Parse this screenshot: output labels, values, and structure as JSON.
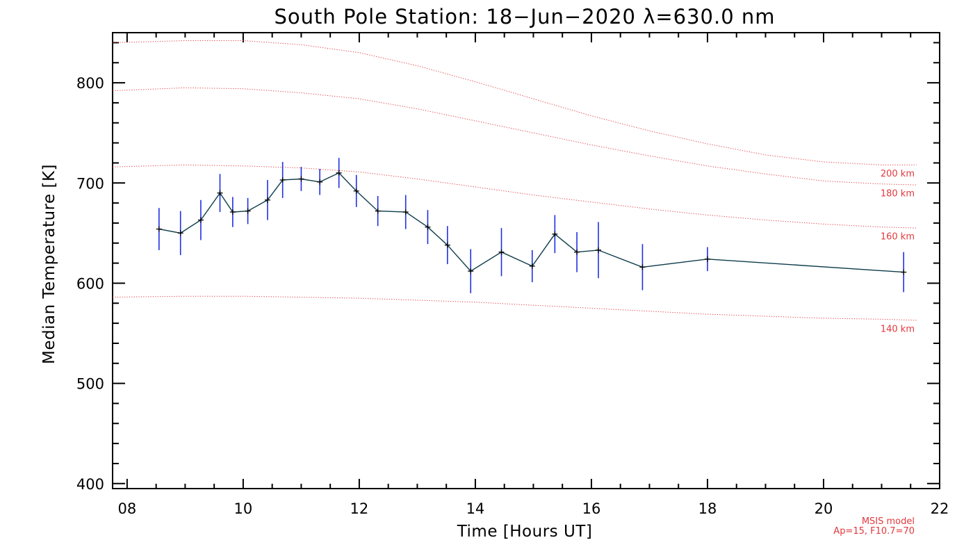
{
  "chart_data": {
    "type": "line",
    "title": "South Pole Station: 18−Jun−2020 λ=630.0 nm",
    "xlabel": "Time [Hours UT]",
    "ylabel": "Median Temperature [K]",
    "xlim": [
      7.75,
      22.0
    ],
    "ylim": [
      395,
      850
    ],
    "x_ticks": [
      8,
      10,
      12,
      14,
      16,
      18,
      20,
      22
    ],
    "x_tick_labels": [
      "08",
      "10",
      "12",
      "14",
      "16",
      "18",
      "20",
      "22"
    ],
    "y_ticks": [
      400,
      500,
      600,
      700,
      800
    ],
    "y_tick_labels": [
      "400",
      "500",
      "600",
      "700",
      "800"
    ],
    "series": [
      {
        "name": "Median Temperature",
        "color": "#0d3b4a",
        "error_color": "#1f2fe0",
        "marker_color": "#000000",
        "points": [
          {
            "x": 8.55,
            "y": 654,
            "err": 21
          },
          {
            "x": 8.92,
            "y": 650,
            "err": 22
          },
          {
            "x": 9.27,
            "y": 663,
            "err": 20
          },
          {
            "x": 9.6,
            "y": 690,
            "err": 19
          },
          {
            "x": 9.82,
            "y": 671,
            "err": 15
          },
          {
            "x": 10.08,
            "y": 672,
            "err": 13
          },
          {
            "x": 10.42,
            "y": 683,
            "err": 20
          },
          {
            "x": 10.68,
            "y": 703,
            "err": 18
          },
          {
            "x": 11.0,
            "y": 704,
            "err": 12
          },
          {
            "x": 11.32,
            "y": 701,
            "err": 13
          },
          {
            "x": 11.65,
            "y": 710,
            "err": 15
          },
          {
            "x": 11.95,
            "y": 692,
            "err": 16
          },
          {
            "x": 12.32,
            "y": 672,
            "err": 15
          },
          {
            "x": 12.8,
            "y": 671,
            "err": 17
          },
          {
            "x": 13.18,
            "y": 656,
            "err": 17
          },
          {
            "x": 13.52,
            "y": 638,
            "err": 19
          },
          {
            "x": 13.92,
            "y": 612,
            "err": 22
          },
          {
            "x": 14.45,
            "y": 631,
            "err": 24
          },
          {
            "x": 14.98,
            "y": 617,
            "err": 16
          },
          {
            "x": 15.37,
            "y": 649,
            "err": 19
          },
          {
            "x": 15.75,
            "y": 631,
            "err": 20
          },
          {
            "x": 16.12,
            "y": 633,
            "err": 28
          },
          {
            "x": 16.88,
            "y": 616,
            "err": 23
          },
          {
            "x": 18.0,
            "y": 624,
            "err": 12
          },
          {
            "x": 21.38,
            "y": 611,
            "err": 20
          }
        ]
      }
    ],
    "model_curves": [
      {
        "label": "200 km",
        "color": "#e0393e",
        "x": [
          7.75,
          9,
          10,
          11,
          12,
          13,
          14,
          15,
          16,
          17,
          18,
          19,
          20,
          21,
          21.6
        ],
        "y": [
          840,
          842,
          842,
          838,
          830,
          817,
          801,
          784,
          767,
          752,
          739,
          728,
          721,
          718,
          718
        ]
      },
      {
        "label": "180 km",
        "color": "#e0393e",
        "x": [
          7.75,
          9,
          10,
          11,
          12,
          13,
          14,
          15,
          16,
          17,
          18,
          19,
          20,
          21,
          21.6
        ],
        "y": [
          792,
          795,
          794,
          790,
          784,
          774,
          762,
          750,
          738,
          727,
          717,
          709,
          702,
          699,
          698
        ]
      },
      {
        "label": "160 km",
        "color": "#e0393e",
        "x": [
          7.75,
          9,
          10,
          11,
          12,
          13,
          14,
          15,
          16,
          17,
          18,
          19,
          20,
          21,
          21.6
        ],
        "y": [
          716,
          718,
          717,
          715,
          711,
          704,
          696,
          688,
          681,
          674,
          668,
          663,
          659,
          656,
          655
        ]
      },
      {
        "label": "140 km",
        "color": "#e0393e",
        "x": [
          7.75,
          9,
          10,
          11,
          12,
          13,
          14,
          15,
          16,
          17,
          18,
          19,
          20,
          21,
          21.6
        ],
        "y": [
          586,
          587,
          587,
          586,
          585,
          583,
          581,
          578,
          575,
          572,
          569,
          567,
          565,
          564,
          563
        ]
      }
    ],
    "model_label_values": [
      {
        "label": "200 km",
        "y": 710
      },
      {
        "label": "180 km",
        "y": 690
      },
      {
        "label": "160 km",
        "y": 647
      },
      {
        "label": "140 km",
        "y": 555
      }
    ],
    "footnote": [
      "MSIS model",
      "Ap=15, F10.7=70"
    ]
  }
}
